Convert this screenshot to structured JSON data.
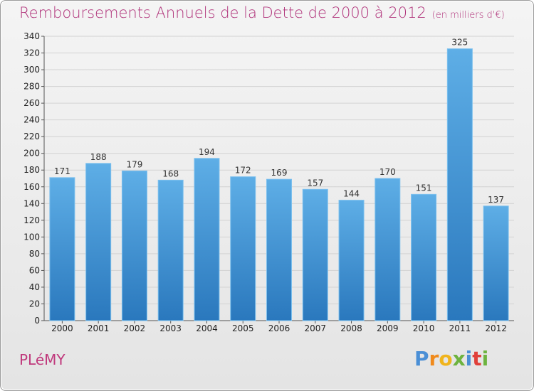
{
  "header": {
    "title": "Remboursements Annuels de la Dette de 2000 à 2012",
    "unit": "(en milliers d'€)"
  },
  "footer": {
    "commune": "PLéMY",
    "brand": "Proxiti"
  },
  "colors": {
    "title": "#b0327a",
    "bar_top": "#5eaee6",
    "bar_bottom": "#2a78bd"
  },
  "chart_data": {
    "type": "bar",
    "title": "Remboursements Annuels de la Dette de 2000 à 2012",
    "xlabel": "",
    "ylabel": "",
    "ylim": [
      0,
      340
    ],
    "yticks": [
      0,
      20,
      40,
      60,
      80,
      100,
      120,
      140,
      160,
      180,
      200,
      220,
      240,
      260,
      280,
      300,
      320,
      340
    ],
    "categories": [
      "2000",
      "2001",
      "2002",
      "2003",
      "2004",
      "2005",
      "2006",
      "2007",
      "2008",
      "2009",
      "2010",
      "2011",
      "2012"
    ],
    "values": [
      171,
      188,
      179,
      168,
      194,
      172,
      169,
      157,
      144,
      170,
      151,
      325,
      137
    ],
    "grid": true,
    "legend": "none"
  }
}
